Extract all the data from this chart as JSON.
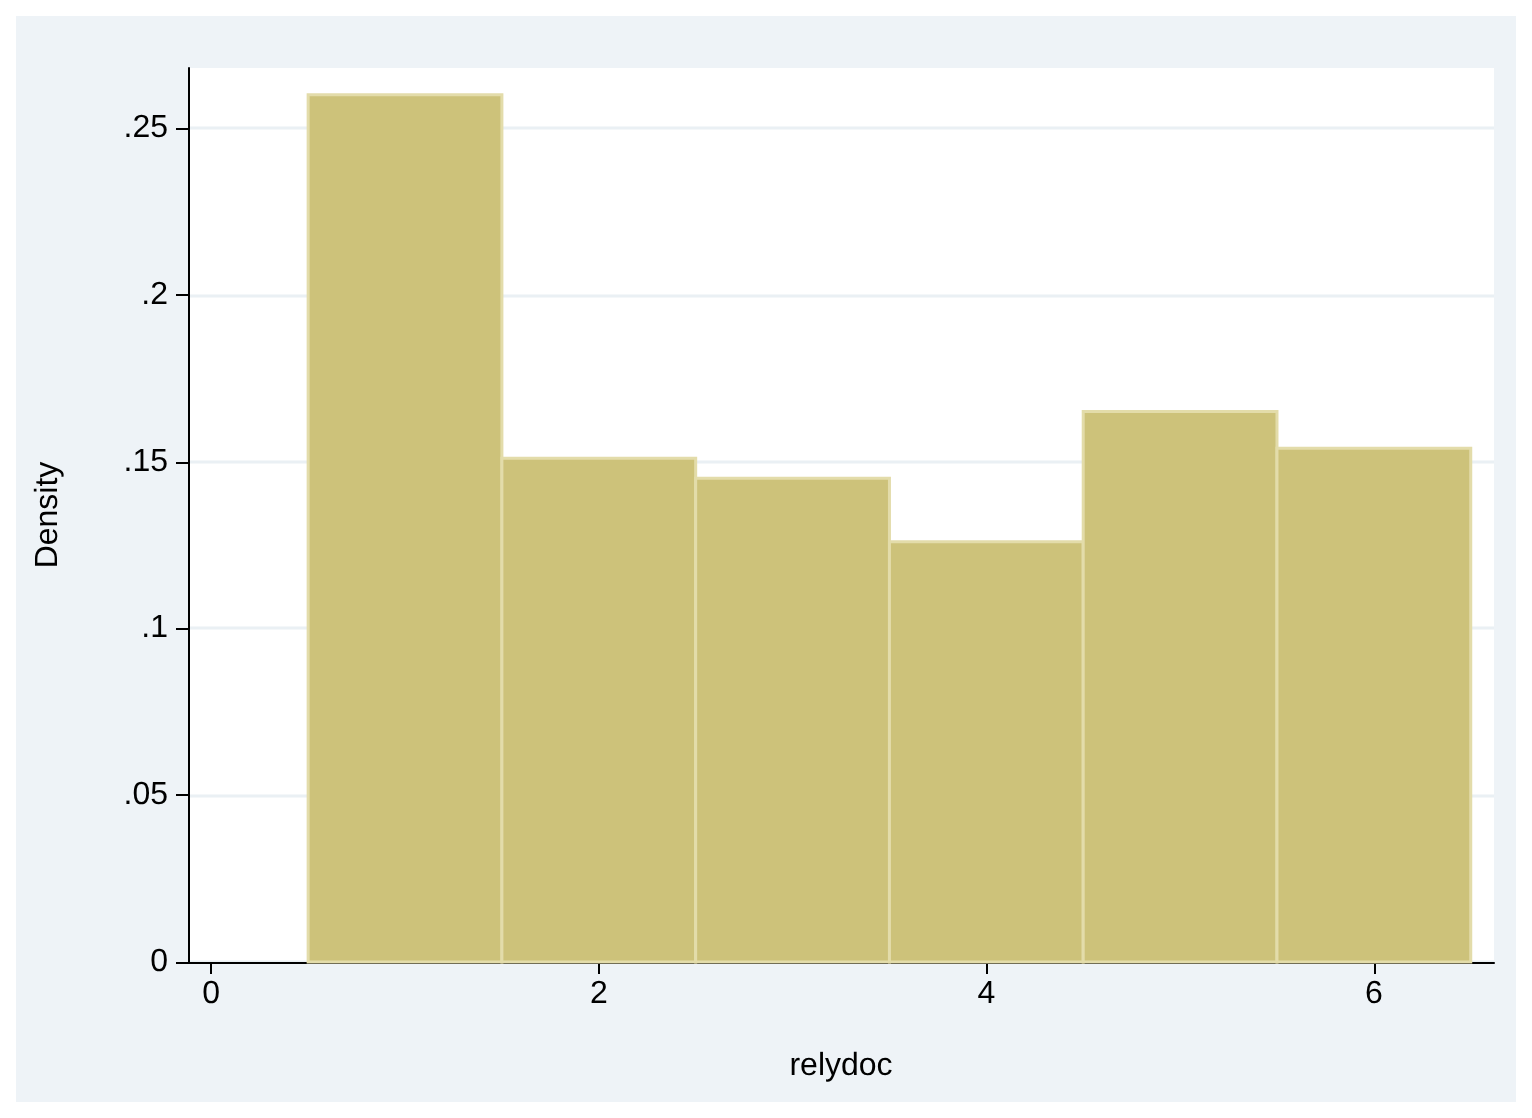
{
  "chart_data": {
    "type": "histogram",
    "xlabel": "relydoc",
    "ylabel": "Density",
    "bins": [
      0.5,
      1.5,
      2.5,
      3.5,
      4.5,
      5.5,
      6.5
    ],
    "values": [
      0.26,
      0.151,
      0.145,
      0.126,
      0.165,
      0.154
    ],
    "color": "#cdc27a",
    "xlim": [
      -0.12,
      6.62
    ],
    "xticks": [
      0,
      2,
      4,
      6
    ],
    "ylim": [
      0,
      0.268
    ],
    "yticks": [
      {
        "value": 0,
        "label": "0"
      },
      {
        "value": 0.05,
        "label": ".05"
      },
      {
        "value": 0.1,
        "label": ".1"
      },
      {
        "value": 0.15,
        "label": ".15"
      },
      {
        "value": 0.2,
        "label": ".2"
      },
      {
        "value": 0.25,
        "label": ".25"
      }
    ],
    "grid": "y"
  }
}
